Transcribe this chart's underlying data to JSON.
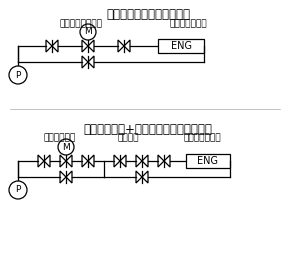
{
  "title1": "ヨコタ電動ユニフロー弁式",
  "label1a": "電動ユニフロー弁",
  "label1b": "ディーゼル機関",
  "title2": "電動ボール弁+定流量弁式（従来方式）",
  "label2a": "電動ボール弁",
  "label2b": "定流量弁",
  "label2c": "ディーゼル機関",
  "eng_label": "ENG",
  "p_label": "P",
  "m_label": "M",
  "bg_color": "#ffffff",
  "line_color": "#000000",
  "font_size_title": 8.5,
  "font_size_label": 6.5,
  "font_size_eng": 7,
  "font_size_pm": 6.5
}
